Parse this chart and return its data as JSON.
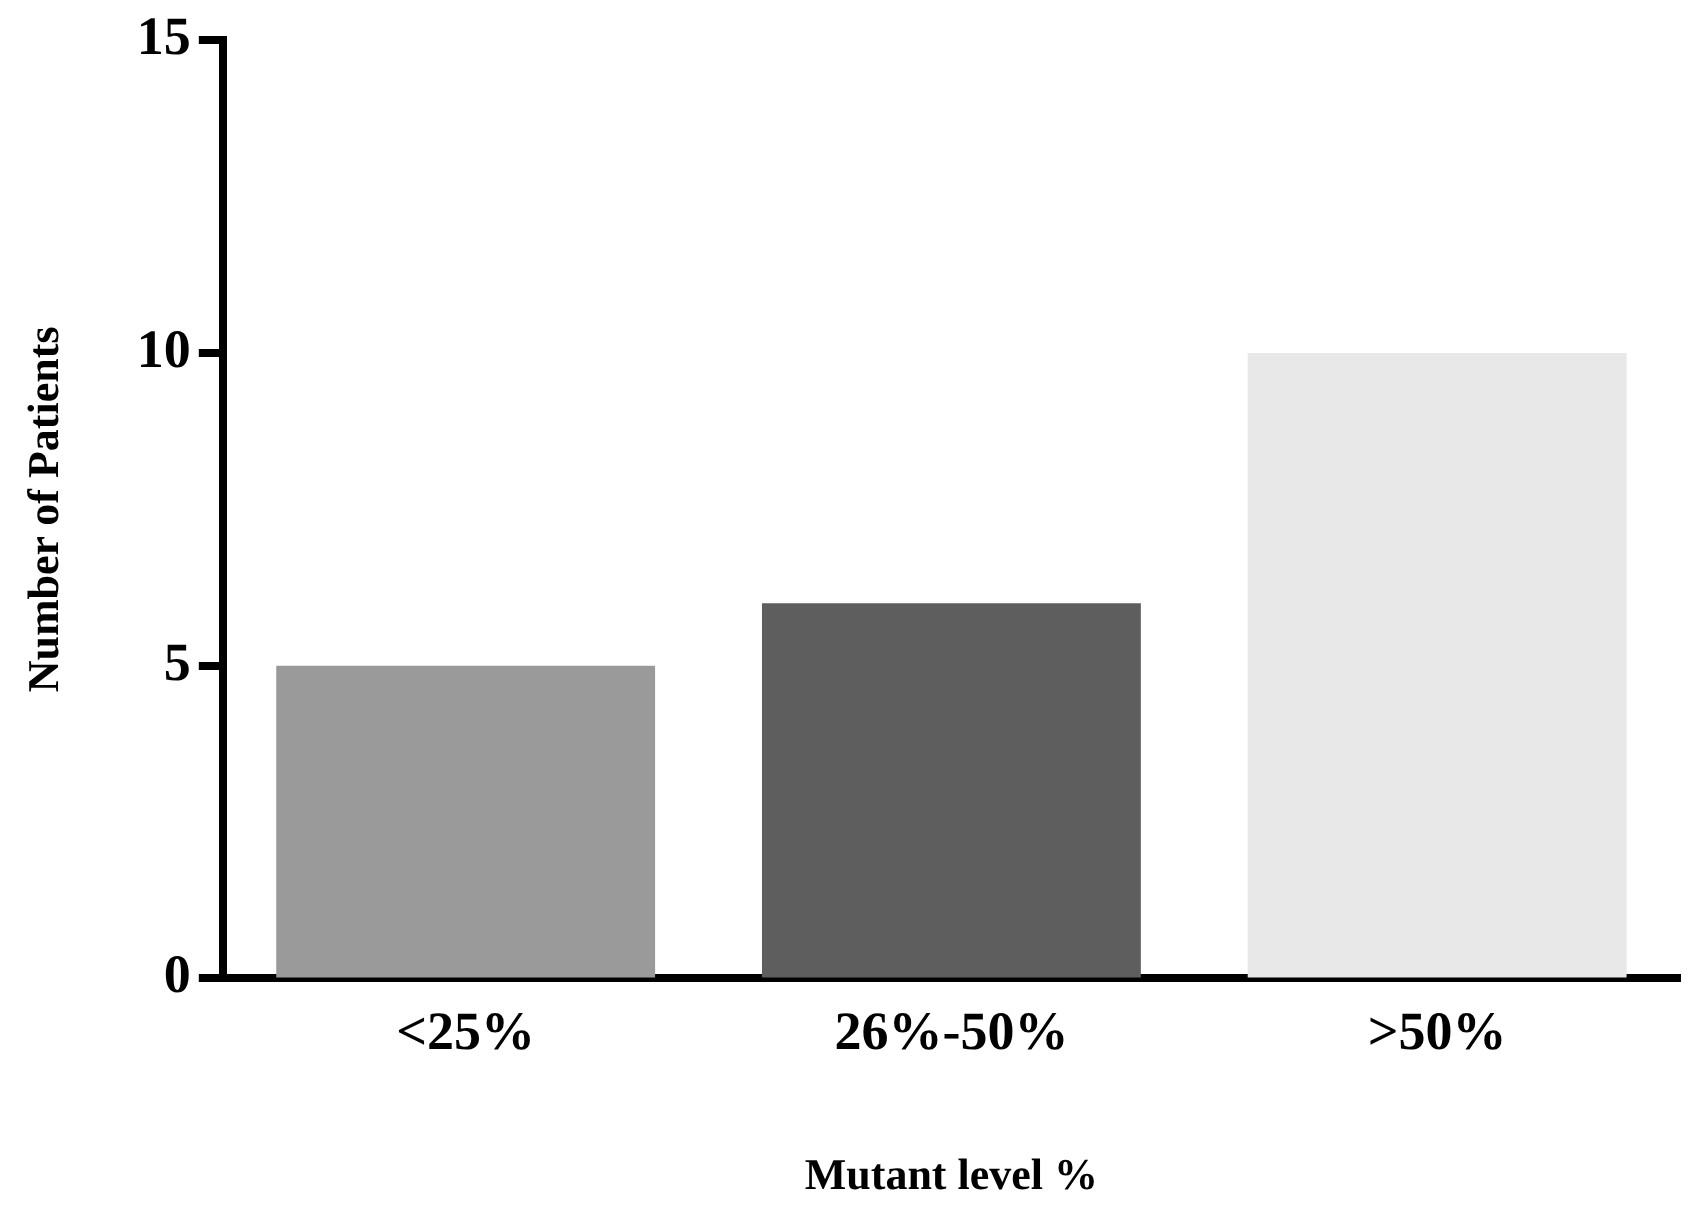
{
  "chart_data": {
    "type": "bar",
    "xlabel": "Mutant level %",
    "ylabel": "Number of Patients",
    "categories": [
      "<25%",
      "26%-50%",
      ">50%"
    ],
    "values": [
      5,
      6,
      10
    ],
    "colors": [
      "#9a9a9a",
      "#5e5e5e",
      "#e8e8e8"
    ],
    "ylim": [
      0,
      15
    ],
    "yticks": [
      0,
      5,
      10,
      15
    ],
    "grid": false,
    "legend": false
  }
}
